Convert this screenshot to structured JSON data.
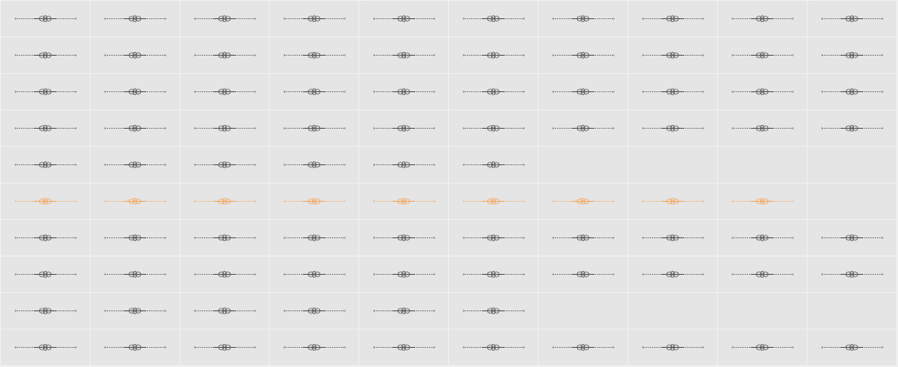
{
  "grid": {
    "columns": 10,
    "rows": [
      {
        "filled": 10,
        "highlighted": false
      },
      {
        "filled": 10,
        "highlighted": false
      },
      {
        "filled": 10,
        "highlighted": false
      },
      {
        "filled": 10,
        "highlighted": false
      },
      {
        "filled": 6,
        "highlighted": false
      },
      {
        "filled": 9,
        "highlighted": true
      },
      {
        "filled": 10,
        "highlighted": false
      },
      {
        "filled": 10,
        "highlighted": false
      },
      {
        "filled": 6,
        "highlighted": false
      },
      {
        "filled": 10,
        "highlighted": false
      }
    ]
  },
  "colors": {
    "background": "#e5e5e5",
    "grid_lines": "#f0f0f0",
    "glyph": "#5e5e5e",
    "glyph_highlight": "#f2aa68"
  },
  "icons": {
    "cell_glyph": "ornamental-divider-icon"
  }
}
